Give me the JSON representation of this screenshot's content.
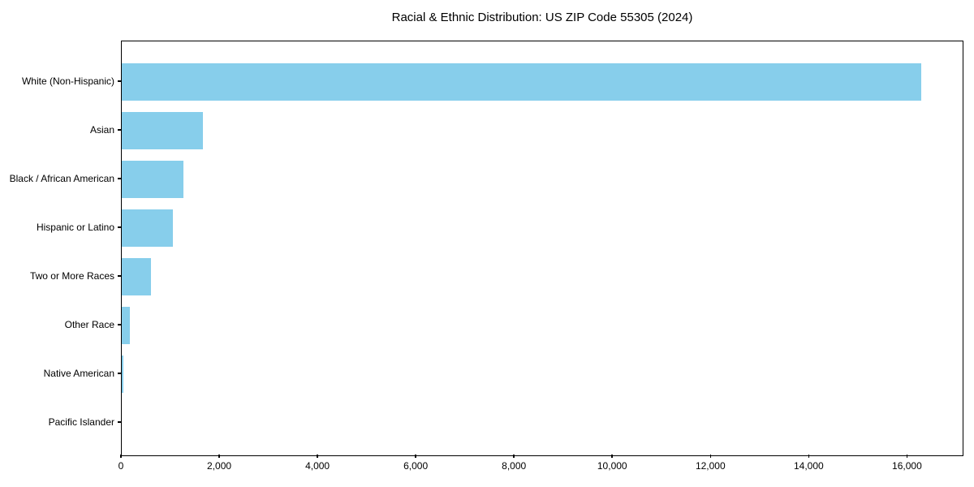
{
  "chart_data": {
    "type": "bar",
    "orientation": "horizontal",
    "title": "Racial & Ethnic Distribution: US ZIP Code 55305 (2024)",
    "categories": [
      "White (Non-Hispanic)",
      "Asian",
      "Black / African American",
      "Hispanic or Latino",
      "Two or More Races",
      "Other Race",
      "Native American",
      "Pacific Islander"
    ],
    "values": [
      16300,
      1650,
      1250,
      1050,
      600,
      160,
      40,
      0
    ],
    "xlabel": "",
    "ylabel": "",
    "xlim": [
      0,
      17150
    ],
    "x_ticks": [
      0,
      2000,
      4000,
      6000,
      8000,
      10000,
      12000,
      14000,
      16000
    ],
    "x_tick_labels": [
      "0",
      "2,000",
      "4,000",
      "6,000",
      "8,000",
      "10,000",
      "12,000",
      "14,000",
      "16,000"
    ],
    "bar_color": "#87CEEB",
    "spine_color": "#000000",
    "background_color": "#ffffff",
    "grid": false,
    "legend": null
  }
}
